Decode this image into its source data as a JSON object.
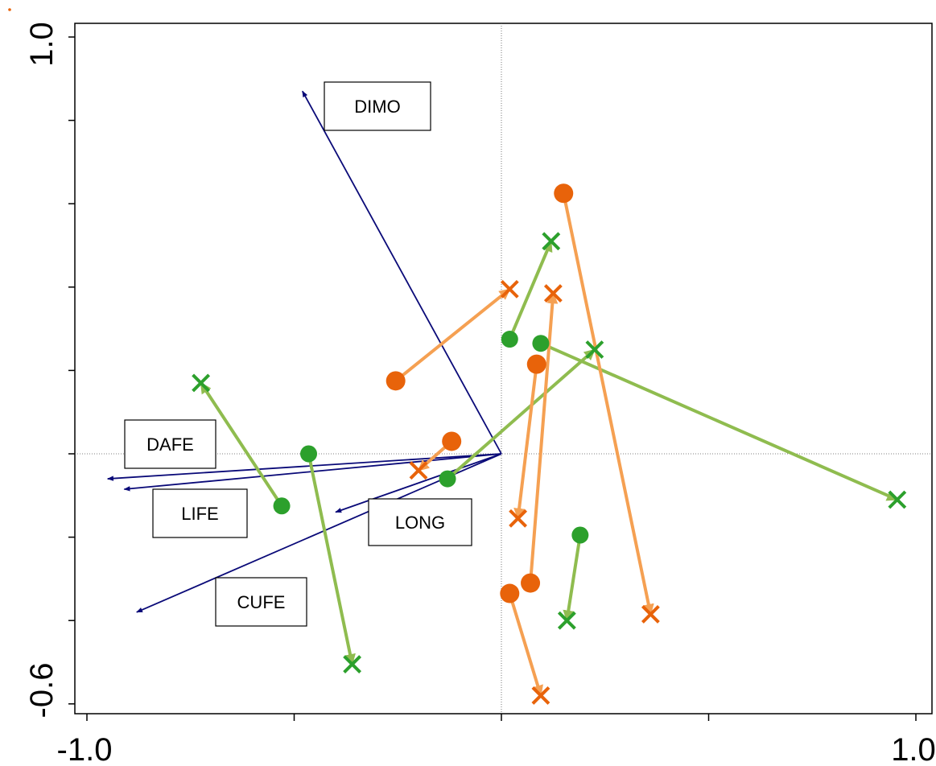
{
  "chart_data": {
    "type": "scatter",
    "title": "",
    "xlabel": "",
    "ylabel": "",
    "xlim": [
      -1.0,
      1.0
    ],
    "ylim": [
      -0.6,
      1.0
    ],
    "x_tick_labels": [
      "-1.0",
      "1.0"
    ],
    "y_tick_labels": [
      "-0.6",
      "1.0"
    ],
    "grid": false,
    "reference_lines": {
      "x": 0.0,
      "y": 0.0
    },
    "biplot_vectors": [
      {
        "label": "DIMO",
        "x": -0.48,
        "y": 0.87
      },
      {
        "label": "DAFE",
        "x": -0.95,
        "y": -0.06
      },
      {
        "label": "LIFE",
        "x": -0.91,
        "y": -0.085
      },
      {
        "label": "LONG",
        "x": -0.4,
        "y": -0.14
      },
      {
        "label": "CUFE",
        "x": -0.88,
        "y": -0.38
      }
    ],
    "series": [
      {
        "color": "#2ca02c",
        "arrow_color": "#8fbc4f",
        "arrows": [
          {
            "start": [
              -0.53,
              -0.125
            ],
            "end": [
              -0.725,
              0.17
            ]
          },
          {
            "start": [
              -0.465,
              0.0
            ],
            "end": [
              -0.36,
              -0.505
            ]
          },
          {
            "start": [
              -0.13,
              -0.06
            ],
            "end": [
              0.225,
              0.25
            ]
          },
          {
            "start": [
              0.02,
              0.275
            ],
            "end": [
              0.12,
              0.51
            ]
          },
          {
            "start": [
              0.095,
              0.265
            ],
            "end": [
              0.955,
              -0.11
            ]
          },
          {
            "start": [
              0.19,
              -0.195
            ],
            "end": [
              0.158,
              -0.4
            ]
          }
        ]
      },
      {
        "color": "#e8630a",
        "arrow_color": "#f5a052",
        "arrows": [
          {
            "start": [
              -0.255,
              0.175
            ],
            "end": [
              0.02,
              0.395
            ]
          },
          {
            "start": [
              -0.12,
              0.03
            ],
            "end": [
              -0.2,
              -0.04
            ]
          },
          {
            "start": [
              0.15,
              0.625
            ],
            "end": [
              0.36,
              -0.385
            ]
          },
          {
            "start": [
              0.085,
              0.215
            ],
            "end": [
              0.04,
              -0.155
            ]
          },
          {
            "start": [
              0.07,
              -0.31
            ],
            "end": [
              0.125,
              0.385
            ]
          },
          {
            "start": [
              0.02,
              -0.335
            ],
            "end": [
              0.095,
              -0.58
            ]
          }
        ]
      }
    ]
  }
}
